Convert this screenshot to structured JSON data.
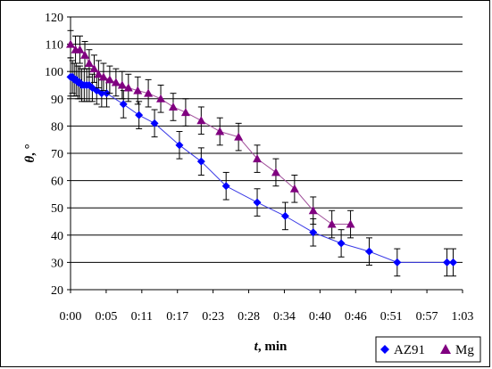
{
  "chart_data": {
    "type": "scatter",
    "xlabel": {
      "var": "t",
      "unit": ", min"
    },
    "ylabel": {
      "var": "θ",
      "unit": ", °"
    },
    "xlim": [
      0,
      63
    ],
    "ylim": [
      20,
      120
    ],
    "x_tick_labels": [
      "0:00",
      "0:05",
      "0:11",
      "0:17",
      "0:23",
      "0:28",
      "0:34",
      "0:40",
      "0:46",
      "0:51",
      "0:57",
      "1:03"
    ],
    "y_ticks": [
      20,
      30,
      40,
      50,
      60,
      70,
      80,
      90,
      100,
      110,
      120
    ],
    "grid": "horizontal",
    "legend_position": "bottom-right",
    "series": [
      {
        "name": "AZ91",
        "color": "#0000ff",
        "line_color": "#3a3ae6",
        "marker": "diamond",
        "x": [
          0.0,
          0.3,
          0.6,
          0.9,
          1.2,
          1.5,
          1.8,
          2.2,
          2.6,
          3.0,
          3.5,
          4.2,
          5.0,
          5.8,
          8.5,
          11.0,
          13.5,
          17.5,
          21.0,
          25.0,
          30.0,
          34.5,
          39.0,
          43.5,
          48.0,
          52.5,
          60.5,
          61.5
        ],
        "y": [
          98,
          98,
          97,
          97,
          96,
          96,
          95,
          95,
          95,
          95,
          94,
          93,
          92,
          92,
          88,
          84,
          81,
          73,
          67,
          58,
          52,
          47,
          41,
          37,
          34,
          30,
          30,
          30
        ],
        "error": [
          7,
          6,
          6,
          6,
          6,
          6,
          6,
          6,
          6,
          6,
          5,
          5,
          5,
          5,
          5,
          5,
          5,
          5,
          5,
          5,
          5,
          5,
          5,
          5,
          5,
          5,
          5,
          5
        ]
      },
      {
        "name": "Mg",
        "color": "#800080",
        "line_color": "#a0509a",
        "marker": "triangle",
        "x": [
          0.0,
          0.8,
          1.5,
          2.3,
          3.0,
          3.8,
          4.5,
          5.3,
          6.3,
          7.3,
          8.3,
          9.3,
          10.8,
          12.5,
          14.5,
          16.5,
          18.5,
          21.0,
          24.0,
          27.0,
          30.0,
          33.0,
          36.0,
          39.0,
          42.0,
          45.0
        ],
        "y": [
          110,
          108,
          108,
          106,
          103,
          101,
          99,
          98,
          97,
          96,
          95,
          94,
          93,
          92,
          90,
          87,
          85,
          82,
          78,
          76,
          68,
          63,
          57,
          49,
          44,
          44
        ],
        "error": [
          5,
          5,
          5,
          5,
          5,
          5,
          5,
          5,
          5,
          5,
          5,
          5,
          5,
          5,
          5,
          5,
          5,
          5,
          5,
          5,
          5,
          5,
          5,
          5,
          5,
          5
        ]
      }
    ]
  }
}
